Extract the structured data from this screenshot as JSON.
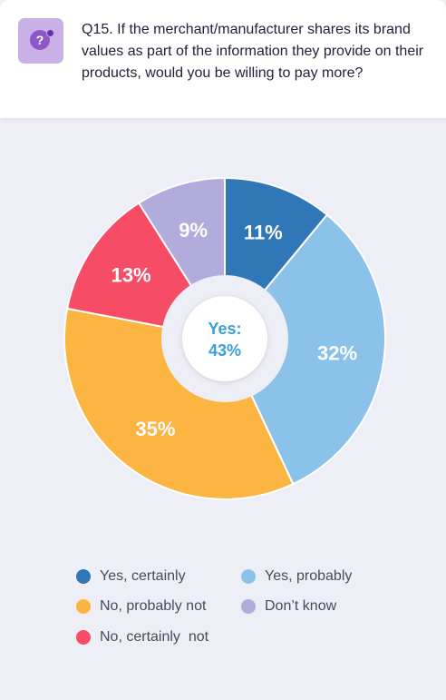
{
  "question": {
    "icon": "question-bubble-icon",
    "text": "Q15. If the merchant/manufacturer shares its brand values as part of the information they provide on their products, would you be willing to pay more?"
  },
  "center": {
    "line1": "Yes:",
    "line2": "43%",
    "color": "#3a9fd6"
  },
  "chart_data": {
    "type": "pie",
    "donut": true,
    "categories": [
      "Yes, certainly",
      "Yes, probably",
      "No, probably not",
      "No, certainly  not",
      "Don’t know"
    ],
    "values": [
      11,
      32,
      35,
      13,
      9
    ],
    "labels": [
      "11%",
      "32%",
      "35%",
      "13%",
      "9%"
    ],
    "colors": [
      "#3077b8",
      "#8bc2ea",
      "#fbb540",
      "#f74c65",
      "#b1acdc"
    ],
    "legend": "bottom",
    "legend_order": [
      0,
      1,
      2,
      4,
      3
    ]
  }
}
